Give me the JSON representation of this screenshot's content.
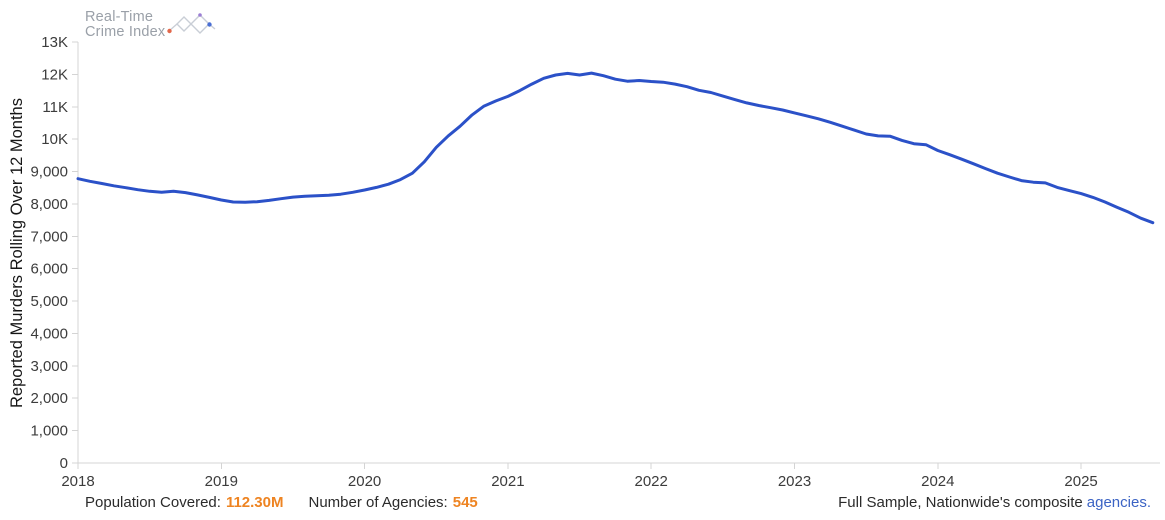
{
  "logo": {
    "line1": "Real-Time",
    "line2": "Crime Index",
    "outline_color": "#c9ced6",
    "dot_orange": "#e2674a",
    "dot_purple": "#9b7fd4",
    "dot_blue": "#4a6fd4"
  },
  "chart_data": {
    "type": "line",
    "title": "",
    "xlabel": "",
    "ylabel": "Reported Murders Rolling Over 12 Months",
    "ylim": [
      0,
      13000
    ],
    "xlim_years": [
      2018,
      2025.6
    ],
    "grid": false,
    "legend_position": "none",
    "line_color": "#2b51c8",
    "axis_color": "#d4d4d4",
    "y_ticks": [
      {
        "value": 0,
        "label": "0"
      },
      {
        "value": 1000,
        "label": "1,000"
      },
      {
        "value": 2000,
        "label": "2,000"
      },
      {
        "value": 3000,
        "label": "3,000"
      },
      {
        "value": 4000,
        "label": "4,000"
      },
      {
        "value": 5000,
        "label": "5,000"
      },
      {
        "value": 6000,
        "label": "6,000"
      },
      {
        "value": 7000,
        "label": "7,000"
      },
      {
        "value": 8000,
        "label": "8,000"
      },
      {
        "value": 9000,
        "label": "9,000"
      },
      {
        "value": 10000,
        "label": "10K"
      },
      {
        "value": 11000,
        "label": "11K"
      },
      {
        "value": 12000,
        "label": "12K"
      },
      {
        "value": 13000,
        "label": "13K"
      }
    ],
    "x_ticks": [
      "2018",
      "2019",
      "2020",
      "2021",
      "2022",
      "2023",
      "2024",
      "2025"
    ],
    "series": [
      {
        "name": "Reported Murders Rolling Over 12 Months",
        "cadence": "monthly",
        "data_by_year": [
          {
            "year": 2018,
            "monthly_values": [
              8780,
              8700,
              8630,
              8560,
              8500,
              8440,
              8390,
              8360,
              8390,
              8350,
              8280,
              8200
            ]
          },
          {
            "year": 2019,
            "monthly_values": [
              8120,
              8060,
              8050,
              8070,
              8110,
              8160,
              8210,
              8240,
              8250,
              8270,
              8300,
              8360
            ]
          },
          {
            "year": 2020,
            "monthly_values": [
              8430,
              8510,
              8610,
              8750,
              8950,
              9300,
              9750,
              10100,
              10400,
              10750,
              11020,
              11180
            ]
          },
          {
            "year": 2021,
            "monthly_values": [
              11320,
              11500,
              11700,
              11880,
              11980,
              12030,
              11980,
              12040,
              11960,
              11850,
              11790,
              11810
            ]
          },
          {
            "year": 2022,
            "monthly_values": [
              11780,
              11760,
              11700,
              11620,
              11510,
              11440,
              11330,
              11220,
              11120,
              11040,
              10970,
              10900
            ]
          },
          {
            "year": 2023,
            "monthly_values": [
              10810,
              10720,
              10630,
              10520,
              10400,
              10280,
              10160,
              10100,
              10090,
              9960,
              9860,
              9830
            ]
          },
          {
            "year": 2024,
            "monthly_values": [
              9650,
              9520,
              9380,
              9240,
              9090,
              8950,
              8830,
              8720,
              8670,
              8650,
              8510,
              8410
            ]
          },
          {
            "year": 2025,
            "monthly_values": [
              8320,
              8200,
              8060,
              7900,
              7740,
              7560,
              7420
            ]
          }
        ]
      }
    ]
  },
  "footer": {
    "population_label": "Population Covered:",
    "population_value": "112.30M",
    "agencies_label": "Number of Agencies:",
    "agencies_value": "545",
    "sample_text": "Full Sample, Nationwide's composite",
    "sample_link": "agencies.",
    "value_color": "#ee8422",
    "link_color": "#3b63c4"
  }
}
